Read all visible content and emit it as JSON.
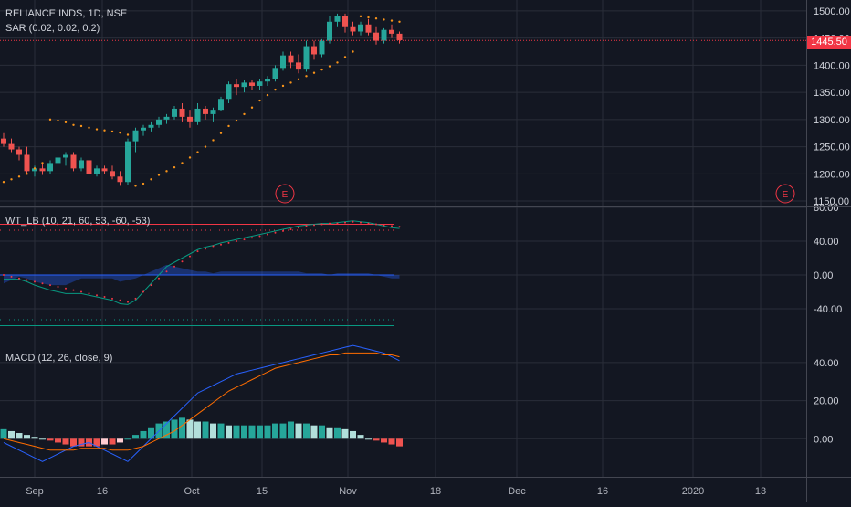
{
  "colors": {
    "bg": "#131722",
    "grid": "#2a2e39",
    "up": "#26a69a",
    "down": "#ef5350",
    "text": "#d1d4dc",
    "sar": "#f7931a",
    "macd": "#2962ff",
    "signal": "#ff6d00",
    "wt1": "#089981",
    "wt2": "#f23645"
  },
  "header": {
    "symbol": "RELIANCE INDS, 1D, NSE",
    "sar_label": "SAR (0.02, 0.02, 0.2)",
    "wt_label": "WT_LB (10, 21, 60, 53, -60, -53)",
    "macd_label": "MACD (12, 26, close, 9)"
  },
  "price_axis": [
    "1500.00",
    "1450.00",
    "1400.00",
    "1350.00",
    "1300.00",
    "1250.00",
    "1200.00",
    "1150.00"
  ],
  "last_price": "1445.50",
  "earnings_marker": "E",
  "wt_axis": [
    "80.00",
    "40.00",
    "0.00",
    "-40.00"
  ],
  "macd_axis": [
    "40.00",
    "20.00",
    "0.00"
  ],
  "time_axis": [
    "Sep",
    "16",
    "Oct",
    "15",
    "Nov",
    "18",
    "Dec",
    "16",
    "2020",
    "13"
  ],
  "chart_data": [
    {
      "type": "candlestick",
      "title": "RELIANCE INDS, 1D, NSE",
      "ylim": [
        1140,
        1520
      ],
      "candles": [
        {
          "o": 1265,
          "h": 1275,
          "l": 1250,
          "c": 1255
        },
        {
          "o": 1255,
          "h": 1265,
          "l": 1240,
          "c": 1245
        },
        {
          "o": 1245,
          "h": 1250,
          "l": 1225,
          "c": 1235
        },
        {
          "o": 1235,
          "h": 1250,
          "l": 1200,
          "c": 1205
        },
        {
          "o": 1205,
          "h": 1215,
          "l": 1195,
          "c": 1210
        },
        {
          "o": 1210,
          "h": 1220,
          "l": 1198,
          "c": 1205
        },
        {
          "o": 1205,
          "h": 1225,
          "l": 1200,
          "c": 1220
        },
        {
          "o": 1220,
          "h": 1235,
          "l": 1215,
          "c": 1230
        },
        {
          "o": 1230,
          "h": 1240,
          "l": 1215,
          "c": 1235
        },
        {
          "o": 1235,
          "h": 1240,
          "l": 1205,
          "c": 1210
        },
        {
          "o": 1210,
          "h": 1230,
          "l": 1205,
          "c": 1225
        },
        {
          "o": 1225,
          "h": 1228,
          "l": 1195,
          "c": 1200
        },
        {
          "o": 1200,
          "h": 1215,
          "l": 1195,
          "c": 1210
        },
        {
          "o": 1210,
          "h": 1215,
          "l": 1200,
          "c": 1205
        },
        {
          "o": 1205,
          "h": 1215,
          "l": 1190,
          "c": 1195
        },
        {
          "o": 1195,
          "h": 1205,
          "l": 1178,
          "c": 1185
        },
        {
          "o": 1185,
          "h": 1265,
          "l": 1180,
          "c": 1260
        },
        {
          "o": 1260,
          "h": 1285,
          "l": 1240,
          "c": 1280
        },
        {
          "o": 1280,
          "h": 1290,
          "l": 1270,
          "c": 1285
        },
        {
          "o": 1285,
          "h": 1295,
          "l": 1278,
          "c": 1290
        },
        {
          "o": 1290,
          "h": 1305,
          "l": 1285,
          "c": 1300
        },
        {
          "o": 1300,
          "h": 1310,
          "l": 1292,
          "c": 1305
        },
        {
          "o": 1305,
          "h": 1325,
          "l": 1300,
          "c": 1320
        },
        {
          "o": 1320,
          "h": 1330,
          "l": 1295,
          "c": 1305
        },
        {
          "o": 1305,
          "h": 1318,
          "l": 1285,
          "c": 1295
        },
        {
          "o": 1295,
          "h": 1330,
          "l": 1290,
          "c": 1320
        },
        {
          "o": 1320,
          "h": 1325,
          "l": 1300,
          "c": 1310
        },
        {
          "o": 1310,
          "h": 1322,
          "l": 1295,
          "c": 1318
        },
        {
          "o": 1318,
          "h": 1342,
          "l": 1315,
          "c": 1338
        },
        {
          "o": 1338,
          "h": 1370,
          "l": 1330,
          "c": 1365
        },
        {
          "o": 1365,
          "h": 1375,
          "l": 1345,
          "c": 1360
        },
        {
          "o": 1360,
          "h": 1372,
          "l": 1350,
          "c": 1368
        },
        {
          "o": 1368,
          "h": 1372,
          "l": 1355,
          "c": 1362
        },
        {
          "o": 1362,
          "h": 1375,
          "l": 1355,
          "c": 1370
        },
        {
          "o": 1370,
          "h": 1380,
          "l": 1362,
          "c": 1375
        },
        {
          "o": 1375,
          "h": 1400,
          "l": 1370,
          "c": 1395
        },
        {
          "o": 1395,
          "h": 1425,
          "l": 1390,
          "c": 1418
        },
        {
          "o": 1418,
          "h": 1425,
          "l": 1395,
          "c": 1405
        },
        {
          "o": 1405,
          "h": 1420,
          "l": 1385,
          "c": 1392
        },
        {
          "o": 1392,
          "h": 1445,
          "l": 1388,
          "c": 1435
        },
        {
          "o": 1435,
          "h": 1445,
          "l": 1410,
          "c": 1420
        },
        {
          "o": 1420,
          "h": 1448,
          "l": 1415,
          "c": 1445
        },
        {
          "o": 1445,
          "h": 1490,
          "l": 1440,
          "c": 1480
        },
        {
          "o": 1480,
          "h": 1495,
          "l": 1470,
          "c": 1490
        },
        {
          "o": 1490,
          "h": 1495,
          "l": 1460,
          "c": 1470
        },
        {
          "o": 1470,
          "h": 1480,
          "l": 1455,
          "c": 1462
        },
        {
          "o": 1462,
          "h": 1480,
          "l": 1455,
          "c": 1475
        },
        {
          "o": 1475,
          "h": 1485,
          "l": 1455,
          "c": 1460
        },
        {
          "o": 1460,
          "h": 1470,
          "l": 1438,
          "c": 1445
        },
        {
          "o": 1445,
          "h": 1468,
          "l": 1440,
          "c": 1465
        },
        {
          "o": 1465,
          "h": 1475,
          "l": 1450,
          "c": 1458
        },
        {
          "o": 1458,
          "h": 1462,
          "l": 1440,
          "c": 1446
        }
      ],
      "sar": [
        1185,
        1190,
        1195,
        1200,
        1210,
        1220,
        1300,
        1298,
        1295,
        1290,
        1288,
        1285,
        1282,
        1280,
        1278,
        1276,
        1272,
        1178,
        1182,
        1190,
        1198,
        1205,
        1212,
        1220,
        1230,
        1240,
        1250,
        1262,
        1275,
        1288,
        1298,
        1310,
        1322,
        1335,
        1345,
        1355,
        1362,
        1368,
        1374,
        1380,
        1386,
        1392,
        1398,
        1405,
        1415,
        1425,
        1490,
        1488,
        1486,
        1484,
        1482,
        1480
      ],
      "sar_state": [
        0,
        0,
        0,
        0,
        0,
        0,
        1,
        1,
        1,
        1,
        1,
        1,
        1,
        1,
        1,
        1,
        1,
        0,
        0,
        0,
        0,
        0,
        0,
        0,
        0,
        0,
        0,
        0,
        0,
        0,
        0,
        0,
        0,
        0,
        0,
        0,
        0,
        0,
        0,
        0,
        0,
        0,
        0,
        0,
        0,
        0,
        1,
        1,
        1,
        1,
        1,
        1
      ],
      "last_price": 1445.5,
      "earnings": [
        "Oct 24",
        "Jan 17"
      ]
    },
    {
      "type": "line",
      "title": "WT_LB (10, 21, 60, 53, -60, -53)",
      "ylim": [
        -80,
        80
      ],
      "levels": [
        60,
        53,
        -53,
        -60
      ],
      "series": [
        {
          "values": [
            -5,
            -5,
            -5,
            -8,
            -12,
            -15,
            -18,
            -20,
            -22,
            -22,
            -22,
            -24,
            -26,
            -28,
            -30,
            -34,
            -35,
            -30,
            -20,
            -10,
            0,
            10,
            15,
            20,
            25,
            30,
            33,
            35,
            38,
            40,
            42,
            44,
            46,
            48,
            50,
            52,
            54,
            56,
            58,
            59,
            60,
            61,
            61,
            62,
            63,
            64,
            63,
            62,
            60,
            58,
            56,
            55
          ]
        },
        {
          "values": [
            0,
            -2,
            -4,
            -6,
            -8,
            -10,
            -12,
            -14,
            -16,
            -18,
            -20,
            -22,
            -24,
            -26,
            -28,
            -30,
            -32,
            -28,
            -20,
            -12,
            -4,
            4,
            10,
            16,
            22,
            28,
            31,
            34,
            36,
            38,
            40,
            42,
            44,
            46,
            48,
            50,
            52,
            54,
            56,
            58,
            59,
            60,
            61,
            61,
            62,
            63,
            62,
            61,
            60,
            59,
            58,
            57
          ]
        }
      ]
    },
    {
      "type": "bar+line",
      "title": "MACD (12, 26, close, 9)",
      "ylim": [
        -20,
        50
      ],
      "histogram": [
        5,
        4,
        3,
        2,
        1,
        0,
        -1,
        -2,
        -3,
        -4,
        -4,
        -4,
        -4,
        -3,
        -3,
        -2,
        0,
        2,
        4,
        6,
        8,
        9,
        10,
        11,
        10,
        9,
        9,
        8,
        8,
        7,
        7,
        7,
        7,
        7,
        7,
        8,
        8,
        9,
        8,
        8,
        7,
        7,
        6,
        6,
        5,
        4,
        2,
        0,
        -1,
        -2,
        -3,
        -4
      ],
      "series": [
        {
          "values": [
            -2,
            -4,
            -6,
            -8,
            -10,
            -12,
            -10,
            -8,
            -6,
            -4,
            -3,
            -2,
            -4,
            -6,
            -8,
            -10,
            -12,
            -8,
            -4,
            0,
            4,
            8,
            12,
            16,
            20,
            24,
            26,
            28,
            30,
            32,
            34,
            35,
            36,
            37,
            38,
            39,
            40,
            41,
            42,
            43,
            44,
            45,
            46,
            47,
            48,
            49,
            48,
            47,
            46,
            45,
            43,
            41
          ]
        },
        {
          "values": [
            0,
            -1,
            -2,
            -3,
            -4,
            -5,
            -6,
            -6,
            -6,
            -6,
            -5,
            -5,
            -5,
            -5,
            -6,
            -6,
            -6,
            -5,
            -4,
            -2,
            0,
            2,
            4,
            7,
            10,
            13,
            16,
            19,
            22,
            25,
            27,
            29,
            31,
            33,
            35,
            37,
            38,
            39,
            40,
            41,
            42,
            43,
            44,
            44,
            45,
            45,
            45,
            45,
            45,
            44,
            44,
            43
          ]
        }
      ]
    }
  ]
}
